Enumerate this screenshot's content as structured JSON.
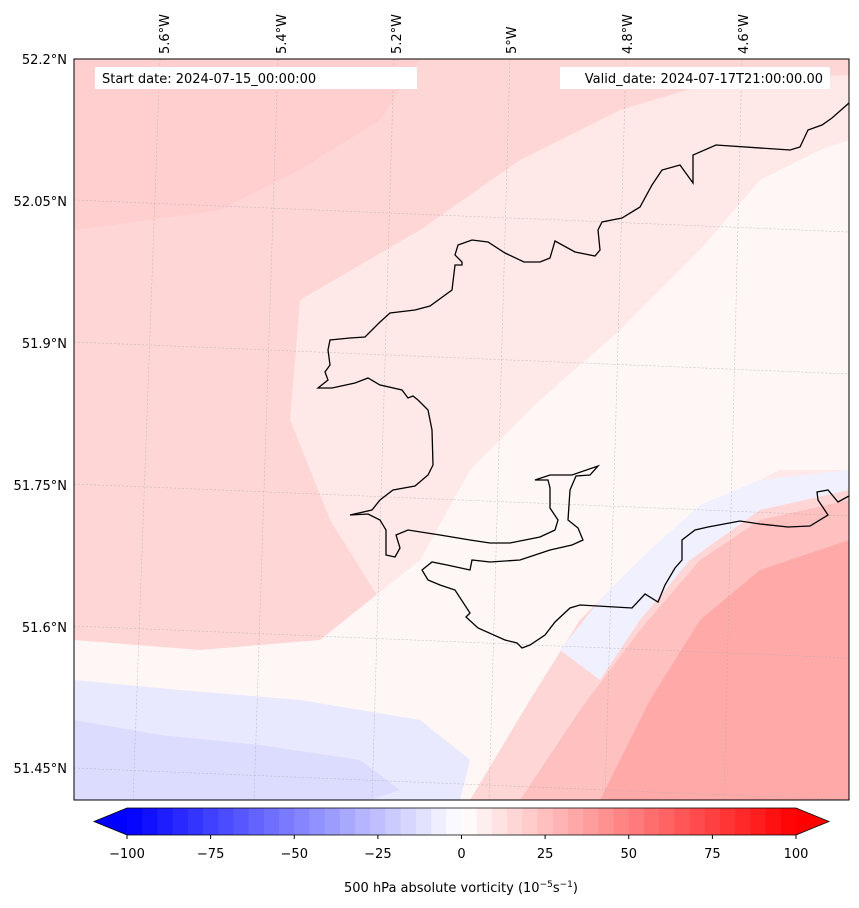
{
  "map": {
    "start_label": "Start date: 2024-07-15_00:00:00",
    "valid_label": "Valid_date: 2024-07-17T21:00:00.00",
    "lon_labels": [
      "5.6°W",
      "5.4°W",
      "5.2°W",
      "5°W",
      "4.8°W",
      "4.6°W"
    ],
    "lat_labels": [
      "52.2°N",
      "52.05°N",
      "51.9°N",
      "51.75°N",
      "51.6°N",
      "51.45°N"
    ]
  },
  "colorbar": {
    "label": "500 hPa absolute vorticity (10",
    "label_exp1": "−5",
    "label_mid": "s",
    "label_exp2": "−1",
    "label_end": ")",
    "ticks": [
      "−100",
      "−75",
      "−50",
      "−25",
      "0",
      "25",
      "50",
      "75",
      "100"
    ],
    "min": -100,
    "max": 100,
    "levels": 44,
    "extend": "both",
    "cmap": "bwr",
    "colors": {
      "low": "#0000ff",
      "mid": "#ffffff",
      "high": "#ff0000"
    }
  },
  "field": {
    "variable": "500 hPa absolute vorticity",
    "units": "1e-5 s^-1",
    "background_level": 12,
    "regions": [
      {
        "name": "ne-land-pink",
        "level": 8
      },
      {
        "name": "central-white-band",
        "level": 2
      },
      {
        "name": "southwest-blue",
        "level": -12
      },
      {
        "name": "southwest-blue-core",
        "level": -20
      },
      {
        "name": "southeast-red",
        "level": 30
      },
      {
        "name": "southeast-red-core",
        "level": 40
      }
    ]
  }
}
